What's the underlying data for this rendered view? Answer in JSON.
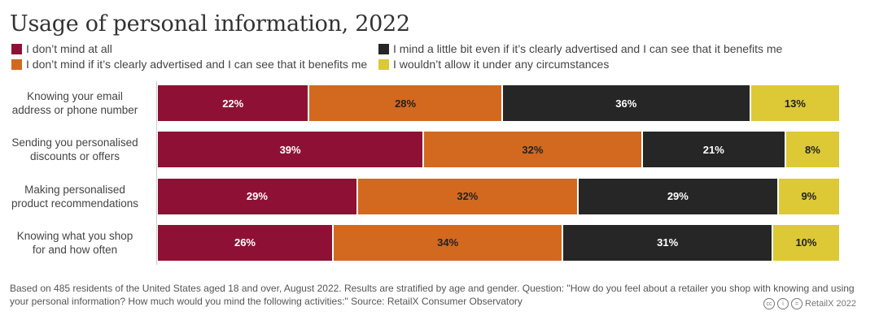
{
  "chart_data": {
    "type": "bar",
    "orientation": "horizontal-stacked",
    "title": "Usage of personal information, 2022",
    "categories": [
      "Knowing your email address or phone number",
      "Sending you personalised discounts or offers",
      "Making personalised product recommendations",
      "Knowing what you shop for and how often"
    ],
    "category_lines": [
      [
        "Knowing your email",
        "address or phone number"
      ],
      [
        "Sending you personalised",
        "discounts or offers"
      ],
      [
        "Making personalised",
        "product recommendations"
      ],
      [
        "Knowing what you shop",
        "for and how often"
      ]
    ],
    "series": [
      {
        "name": "I don’t mind at all",
        "color": "#8e1135",
        "label_color": "#ffffff",
        "values": [
          22,
          39,
          29,
          26
        ]
      },
      {
        "name": "I don’t mind if it’s clearly advertised and I can see that it benefits me",
        "color": "#d2691f",
        "label_color": "#222222",
        "values": [
          28,
          32,
          32,
          34
        ]
      },
      {
        "name": "I mind a little bit even if it’s clearly advertised and I can see that it benefits me",
        "color": "#262626",
        "label_color": "#ffffff",
        "values": [
          36,
          21,
          29,
          31
        ]
      },
      {
        "name": "I wouldn’t allow it under any circumstances",
        "color": "#dcc935",
        "label_color": "#222222",
        "values": [
          13,
          8,
          9,
          10
        ]
      }
    ],
    "unit": "%",
    "legend": "top"
  },
  "footer": {
    "note_lines": [
      "Based on 485 residents of the United States aged 18 and over, August 2022. Results are stratified by age and gender. Question: \"How do you feel about a retailer you shop with knowing and using",
      "your personal information? How much would you mind the following activities:\" Source: RetailX Consumer Observatory"
    ],
    "credit": "RetailX 2022",
    "icons": [
      "cc-icon",
      "by-icon",
      "nd-icon"
    ]
  }
}
